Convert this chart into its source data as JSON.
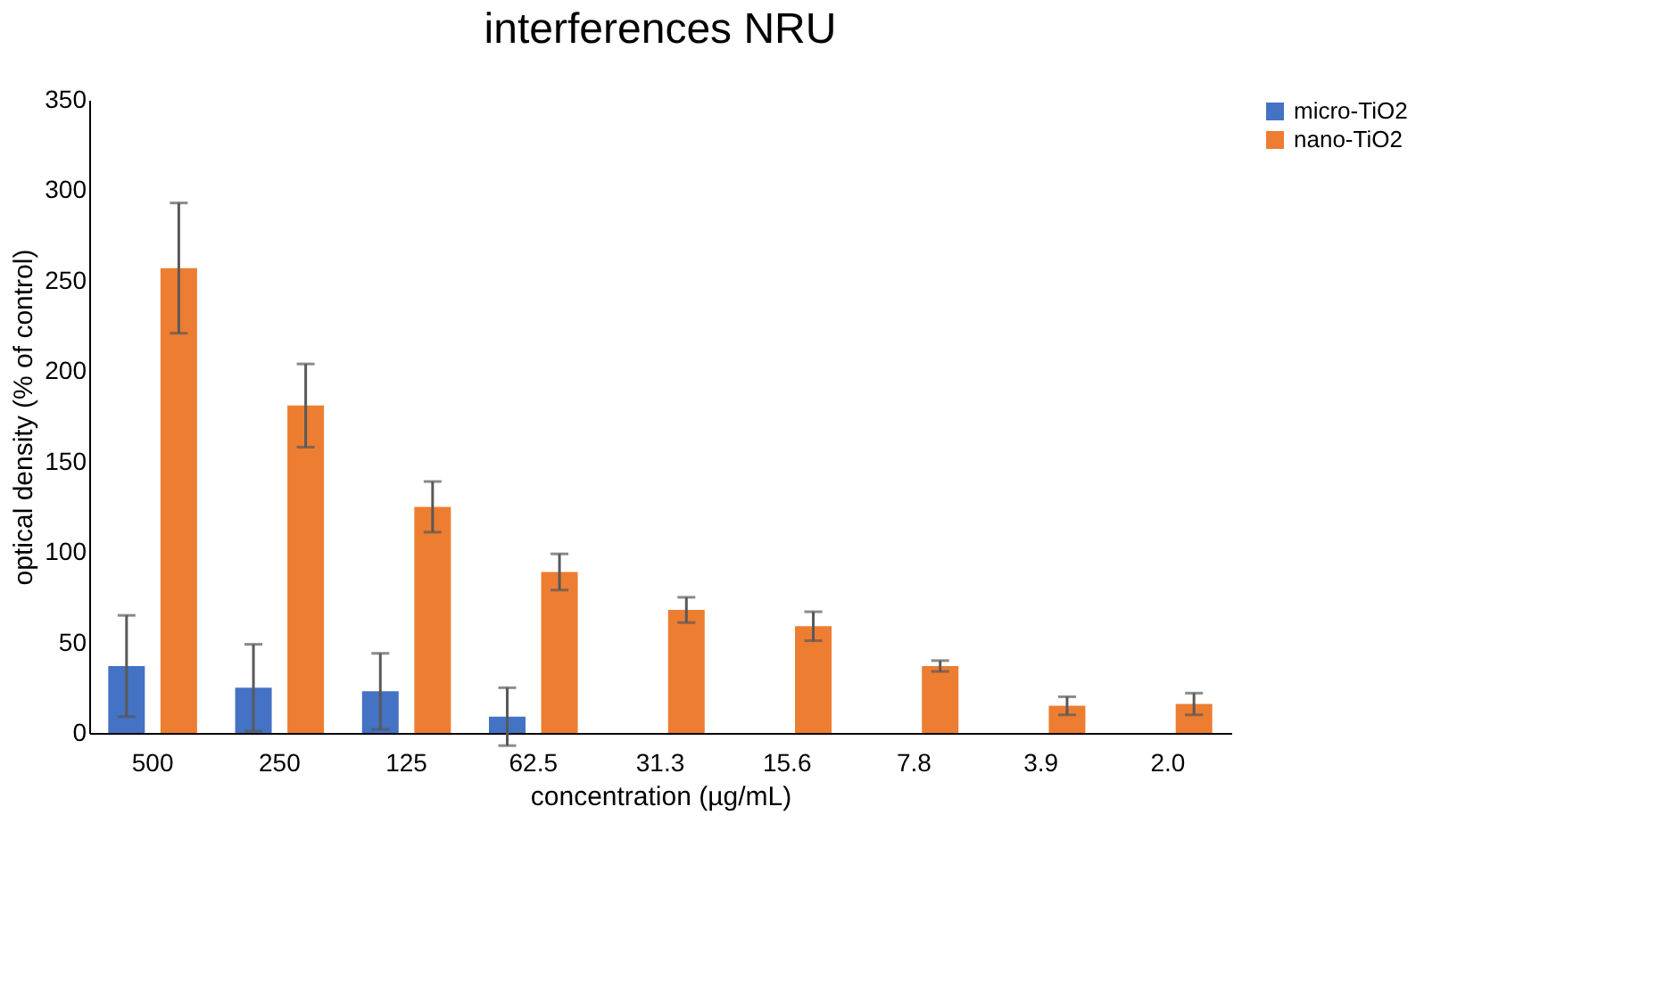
{
  "chart_data": {
    "type": "bar",
    "title": "interferences NRU",
    "xlabel": "concentration (µg/mL)",
    "ylabel": "optical density (% of control)",
    "categories": [
      "500",
      "250",
      "125",
      "62.5",
      "31.3",
      "15.6",
      "7.8",
      "3.9",
      "2.0"
    ],
    "series": [
      {
        "name": "micro-TiO2",
        "color": "#4472c4",
        "values": [
          37,
          25,
          23,
          9,
          0,
          0,
          0,
          0,
          0
        ],
        "errors": [
          28,
          24,
          21,
          16,
          null,
          null,
          null,
          null,
          null
        ]
      },
      {
        "name": "nano-TiO2",
        "color": "#ed7d31",
        "values": [
          257,
          181,
          125,
          89,
          68,
          59,
          37,
          15,
          16
        ],
        "errors": [
          36,
          23,
          14,
          10,
          7,
          8,
          3,
          5,
          6
        ]
      }
    ],
    "ylim": [
      0,
      350
    ],
    "yticks": [
      0,
      50,
      100,
      150,
      200,
      250,
      300,
      350
    ],
    "grid": false,
    "legend": "right"
  }
}
